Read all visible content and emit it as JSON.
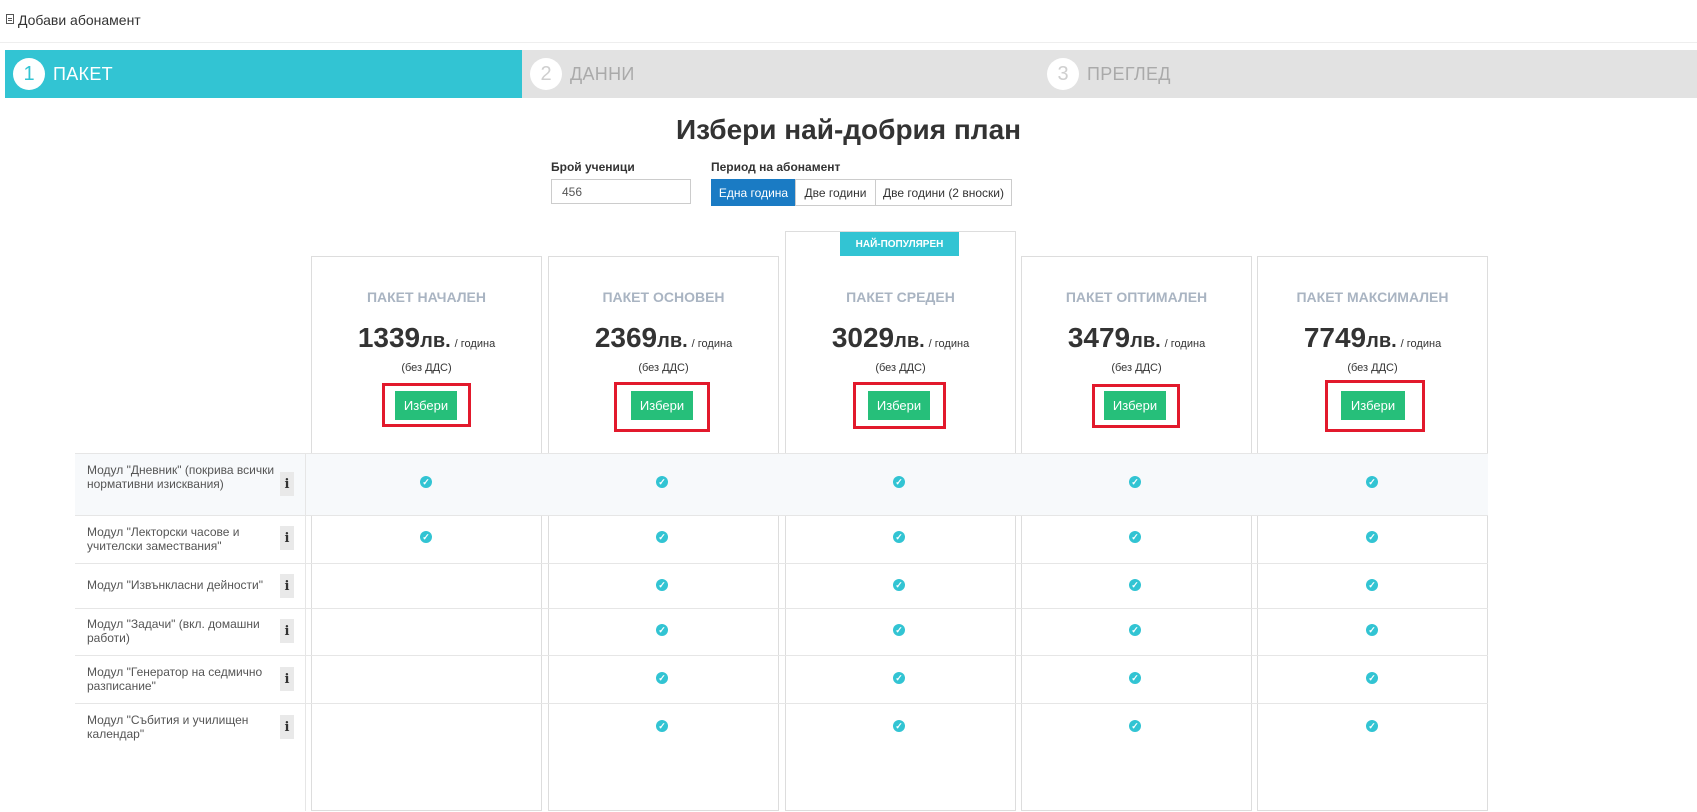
{
  "page": {
    "title": "Добави абонамент",
    "heading": "Избери най-добрия план"
  },
  "steps": [
    {
      "num": "1",
      "label": "ПАКЕТ",
      "active": true
    },
    {
      "num": "2",
      "label": "ДАННИ",
      "active": false
    },
    {
      "num": "3",
      "label": "ПРЕГЛЕД",
      "active": false
    }
  ],
  "form": {
    "students_label": "Брой ученици",
    "students_value": "456",
    "period_label": "Период на абонамент",
    "period_options": [
      "Една година",
      "Две години",
      "Две години (2 вноски)"
    ],
    "period_selected": "Една година"
  },
  "colors": {
    "accent": "#32c4d3",
    "primary": "#1a7bc4",
    "success": "#26bf7a",
    "highlight": "#e2192c"
  },
  "popular_badge": "НАЙ-ПОПУЛЯРЕН",
  "plans": [
    {
      "name": "ПАКЕТ НАЧАЛЕН",
      "price": "1339",
      "currency": "лв.",
      "period": "/ година",
      "vat": "(без ДДС)",
      "button": "Избери",
      "popular": false
    },
    {
      "name": "ПАКЕТ ОСНОВЕН",
      "price": "2369",
      "currency": "лв.",
      "period": "/ година",
      "vat": "(без ДДС)",
      "button": "Избери",
      "popular": false
    },
    {
      "name": "ПАКЕТ СРЕДЕН",
      "price": "3029",
      "currency": "лв.",
      "period": "/ година",
      "vat": "(без ДДС)",
      "button": "Избери",
      "popular": true
    },
    {
      "name": "ПАКЕТ ОПТИМАЛЕН",
      "price": "3479",
      "currency": "лв.",
      "period": "/ година",
      "vat": "(без ДДС)",
      "button": "Избери",
      "popular": false
    },
    {
      "name": "ПАКЕТ МАКСИМАЛЕН",
      "price": "7749",
      "currency": "лв.",
      "period": "/ година",
      "vat": "(без ДДС)",
      "button": "Избери",
      "popular": false
    }
  ],
  "features": [
    {
      "label": "Модул \"Дневник\" (покрива всички нормативни изисквания)",
      "info": "i",
      "included": [
        true,
        true,
        true,
        true,
        true
      ]
    },
    {
      "label": "Модул \"Лекторски часове и учителски замествания\"",
      "info": "i",
      "included": [
        true,
        true,
        true,
        true,
        true
      ]
    },
    {
      "label": "Модул \"Извънкласни дейности\"",
      "info": "i",
      "included": [
        false,
        true,
        true,
        true,
        true
      ]
    },
    {
      "label": "Модул \"Задачи\" (вкл. домашни работи)",
      "info": "i",
      "included": [
        false,
        true,
        true,
        true,
        true
      ]
    },
    {
      "label": "Модул \"Генератор на седмично разписание\"",
      "info": "i",
      "included": [
        false,
        true,
        true,
        true,
        true
      ]
    },
    {
      "label": "Модул \"Събития и училищен календар\"",
      "info": "i",
      "included": [
        false,
        true,
        true,
        true,
        true
      ]
    }
  ]
}
